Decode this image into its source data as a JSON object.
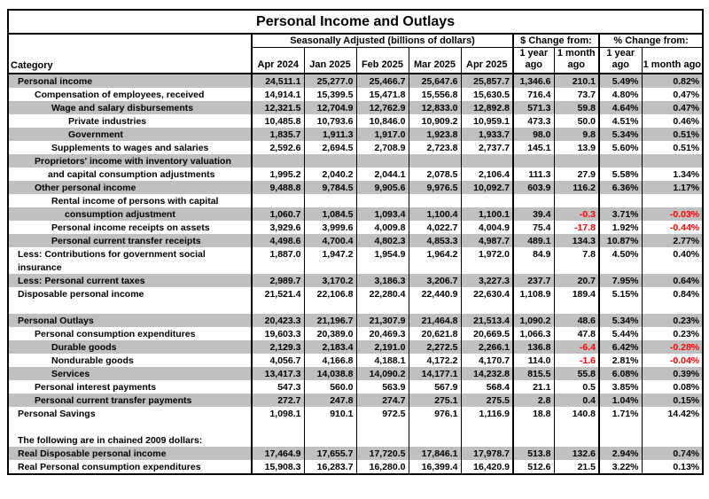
{
  "title": "Personal Income and Outlays",
  "header": {
    "category": "Category",
    "group_adjusted": "Seasonally Adjusted (billions of dollars)",
    "group_dollar_change": "$ Change from:",
    "group_pct_change": "% Change from:",
    "months": [
      "Apr 2024",
      "Jan 2025",
      "Feb 2025",
      "Mar 2025",
      "Apr 2025"
    ],
    "change_cols": [
      "1 year ago",
      "1 month ago",
      "1 year ago",
      "1 month ago"
    ]
  },
  "colors": {
    "shaded_row": "#C0C0C0",
    "negative_value": "#FF0000",
    "border": "#000000"
  },
  "rows": [
    {
      "label": "Personal income",
      "indent": 0,
      "cont": false,
      "shaded": true,
      "values": [
        "24,511.1",
        "25,277.0",
        "25,466.7",
        "25,647.6",
        "25,857.7",
        "1,346.6",
        "210.1",
        "5.49%",
        "0.82%"
      ]
    },
    {
      "label": "Compensation of employees, received",
      "indent": 1,
      "cont": false,
      "shaded": false,
      "values": [
        "14,914.1",
        "15,399.5",
        "15,471.8",
        "15,556.8",
        "15,630.5",
        "716.4",
        "73.7",
        "4.80%",
        "0.47%"
      ]
    },
    {
      "label": "Wage and salary disbursements",
      "indent": 2,
      "cont": false,
      "shaded": true,
      "values": [
        "12,321.5",
        "12,704.9",
        "12,762.9",
        "12,833.0",
        "12,892.8",
        "571.3",
        "59.8",
        "4.64%",
        "0.47%"
      ]
    },
    {
      "label": "Private industries",
      "indent": 3,
      "cont": false,
      "shaded": false,
      "values": [
        "10,485.8",
        "10,793.6",
        "10,846.0",
        "10,909.2",
        "10,959.1",
        "473.3",
        "50.0",
        "4.51%",
        "0.46%"
      ]
    },
    {
      "label": "Government",
      "indent": 3,
      "cont": false,
      "shaded": true,
      "values": [
        "1,835.7",
        "1,911.3",
        "1,917.0",
        "1,923.8",
        "1,933.7",
        "98.0",
        "9.8",
        "5.34%",
        "0.51%"
      ]
    },
    {
      "label": "Supplements to wages and salaries",
      "indent": 2,
      "cont": false,
      "shaded": false,
      "values": [
        "2,592.6",
        "2,694.5",
        "2,708.9",
        "2,723.8",
        "2,737.7",
        "145.1",
        "13.9",
        "5.60%",
        "0.51%"
      ]
    },
    {
      "label": "Proprietors' income with inventory valuation",
      "indent": 1,
      "cont": false,
      "shaded": true,
      "values": null
    },
    {
      "label": "and capital consumption adjustments",
      "indent": 1,
      "cont": true,
      "shaded": false,
      "values": [
        "1,995.2",
        "2,040.2",
        "2,044.1",
        "2,078.5",
        "2,106.4",
        "111.3",
        "27.9",
        "5.58%",
        "1.34%"
      ]
    },
    {
      "label": "Other personal income",
      "indent": 1,
      "cont": false,
      "shaded": true,
      "values": [
        "9,488.8",
        "9,784.5",
        "9,905.6",
        "9,976.5",
        "10,092.7",
        "603.9",
        "116.2",
        "6.36%",
        "1.17%"
      ]
    },
    {
      "label": "Rental income of persons with capital",
      "indent": 2,
      "cont": false,
      "shaded": false,
      "values": null
    },
    {
      "label": "consumption adjustment",
      "indent": 2,
      "cont": true,
      "shaded": true,
      "values": [
        "1,060.7",
        "1,084.5",
        "1,093.4",
        "1,100.4",
        "1,100.1",
        "39.4",
        "-0.3",
        "3.71%",
        "-0.03%"
      ]
    },
    {
      "label": "Personal income receipts on assets",
      "indent": 2,
      "cont": false,
      "shaded": false,
      "values": [
        "3,929.6",
        "3,999.6",
        "4,009.8",
        "4,022.7",
        "4,004.9",
        "75.4",
        "-17.8",
        "1.92%",
        "-0.44%"
      ]
    },
    {
      "label": "Personal current transfer receipts",
      "indent": 2,
      "cont": false,
      "shaded": true,
      "values": [
        "4,498.6",
        "4,700.4",
        "4,802.3",
        "4,853.3",
        "4,987.7",
        "489.1",
        "134.3",
        "10.87%",
        "2.77%"
      ]
    },
    {
      "label": "Less: Contributions for government social",
      "indent": 0,
      "cont": false,
      "shaded": false,
      "values": [
        "1,887.0",
        "1,947.2",
        "1,954.9",
        "1,964.2",
        "1,972.0",
        "84.9",
        "7.8",
        "4.50%",
        "0.40%"
      ]
    },
    {
      "label": "insurance",
      "indent": 0,
      "cont": false,
      "shaded": false,
      "values": null
    },
    {
      "label": "Less: Personal current taxes",
      "indent": 0,
      "cont": false,
      "shaded": true,
      "values": [
        "2,989.7",
        "3,170.2",
        "3,186.3",
        "3,206.7",
        "3,227.3",
        "237.7",
        "20.7",
        "7.95%",
        "0.64%"
      ]
    },
    {
      "label": "Disposable personal income",
      "indent": 0,
      "cont": false,
      "shaded": false,
      "values": [
        "21,521.4",
        "22,106.8",
        "22,280.4",
        "22,440.9",
        "22,630.4",
        "1,108.9",
        "189.4",
        "5.15%",
        "0.84%"
      ]
    },
    {
      "label": "",
      "indent": 0,
      "cont": false,
      "shaded": false,
      "values": null
    },
    {
      "label": "Personal Outlays",
      "indent": 0,
      "cont": false,
      "shaded": true,
      "values": [
        "20,423.3",
        "21,196.7",
        "21,307.9",
        "21,464.8",
        "21,513.4",
        "1,090.2",
        "48.6",
        "5.34%",
        "0.23%"
      ]
    },
    {
      "label": "Personal consumption expenditures",
      "indent": 1,
      "cont": false,
      "shaded": false,
      "values": [
        "19,603.3",
        "20,389.0",
        "20,469.3",
        "20,621.8",
        "20,669.5",
        "1,066.3",
        "47.8",
        "5.44%",
        "0.23%"
      ]
    },
    {
      "label": "Durable goods",
      "indent": 2,
      "cont": false,
      "shaded": true,
      "values": [
        "2,129.3",
        "2,183.4",
        "2,191.0",
        "2,272.5",
        "2,266.1",
        "136.8",
        "-6.4",
        "6.42%",
        "-0.28%"
      ]
    },
    {
      "label": "Nondurable goods",
      "indent": 2,
      "cont": false,
      "shaded": false,
      "values": [
        "4,056.7",
        "4,166.8",
        "4,188.1",
        "4,172.2",
        "4,170.7",
        "114.0",
        "-1.6",
        "2.81%",
        "-0.04%"
      ]
    },
    {
      "label": "Services",
      "indent": 2,
      "cont": false,
      "shaded": true,
      "values": [
        "13,417.3",
        "14,038.8",
        "14,090.2",
        "14,177.1",
        "14,232.8",
        "815.5",
        "55.8",
        "6.08%",
        "0.39%"
      ]
    },
    {
      "label": "Personal interest payments",
      "indent": 1,
      "cont": false,
      "shaded": false,
      "values": [
        "547.3",
        "560.0",
        "563.9",
        "567.9",
        "568.4",
        "21.1",
        "0.5",
        "3.85%",
        "0.08%"
      ]
    },
    {
      "label": "Personal current transfer payments",
      "indent": 1,
      "cont": false,
      "shaded": true,
      "values": [
        "272.7",
        "247.8",
        "274.7",
        "275.1",
        "275.5",
        "2.8",
        "0.4",
        "1.04%",
        "0.15%"
      ]
    },
    {
      "label": "Personal Savings",
      "indent": 0,
      "cont": false,
      "shaded": false,
      "values": [
        "1,098.1",
        "910.1",
        "972.5",
        "976.1",
        "1,116.9",
        "18.8",
        "140.8",
        "1.71%",
        "14.42%"
      ]
    },
    {
      "label": "",
      "indent": 0,
      "cont": false,
      "shaded": false,
      "values": null
    },
    {
      "label": "The following are in chained 2009 dollars:",
      "indent": 0,
      "cont": false,
      "shaded": false,
      "values": null
    },
    {
      "label": "Real Disposable personal income",
      "indent": 0,
      "cont": false,
      "shaded": true,
      "values": [
        "17,464.9",
        "17,655.7",
        "17,720.5",
        "17,846.1",
        "17,978.7",
        "513.8",
        "132.6",
        "2.94%",
        "0.74%"
      ]
    },
    {
      "label": "Real Personal consumption expenditures",
      "indent": 0,
      "cont": false,
      "shaded": false,
      "values": [
        "15,908.3",
        "16,283.7",
        "16,280.0",
        "16,399.4",
        "16,420.9",
        "512.6",
        "21.5",
        "3.22%",
        "0.13%"
      ]
    }
  ]
}
